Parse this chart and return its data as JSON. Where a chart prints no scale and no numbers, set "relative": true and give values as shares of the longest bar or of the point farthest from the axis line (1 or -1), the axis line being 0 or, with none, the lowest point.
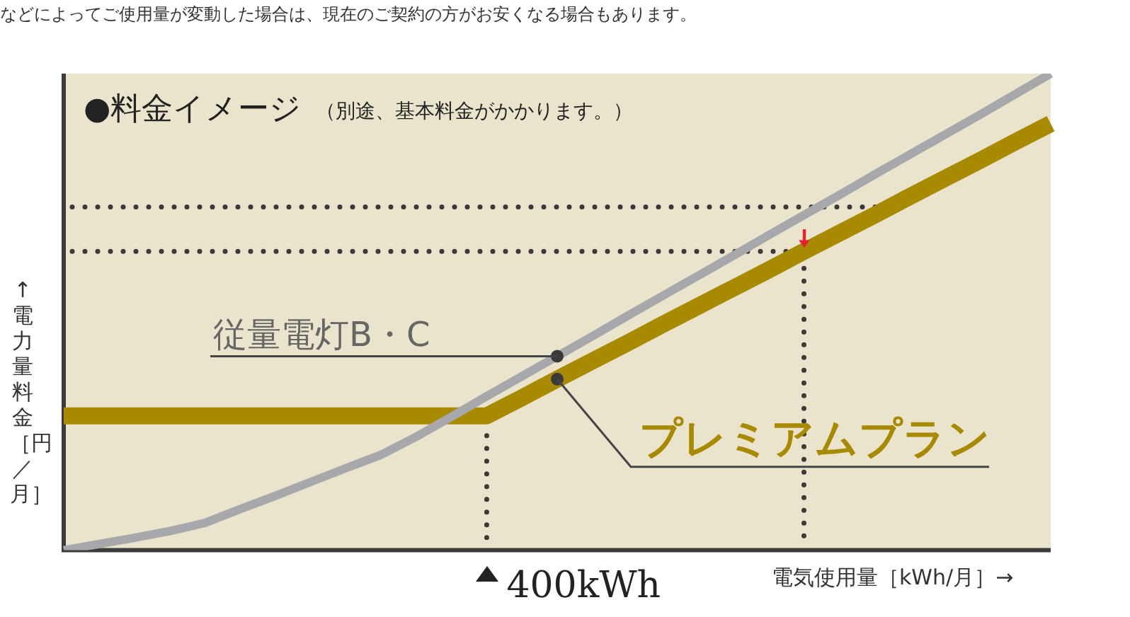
{
  "chart_data": {
    "type": "line",
    "title": "●料金イメージ",
    "subtitle": "（別途、基本料金がかかります。）",
    "xlabel": "電気使用量［kWh/月］→",
    "ylabel": "↑電力量料金［円／月］",
    "annotations": [
      "などによってご使用量が変動した場合は、現在のご契約の方がお安くなる場合もあります。",
      "400kWh"
    ],
    "categories": [
      null,
      null,
      null,
      null,
      null,
      null,
      null,
      null,
      null,
      null,
      null,
      null,
      null,
      null,
      null,
      null,
      null,
      null,
      null,
      null,
      null,
      null,
      null,
      null,
      null,
      null,
      null,
      null,
      null
    ],
    "relative": true,
    "legend": false,
    "grid": false,
    "marker": "none",
    "line_style": "solid",
    "series": [
      {
        "name": "従量電灯B・C",
        "color": "#a7a8ab",
        "values": [
          0,
          0.013,
          0.026,
          0.04,
          0.057,
          0.086,
          0.114,
          0.143,
          0.172,
          0.2,
          0.238,
          0.28,
          0.323,
          0.365,
          0.407,
          0.449,
          0.492,
          0.534,
          0.576,
          0.618,
          0.661,
          0.703,
          0.745,
          0.788,
          0.83,
          0.872,
          0.914,
          0.957,
          1
        ]
      },
      {
        "name": "プレミアムプラン",
        "color": "#a88a00",
        "values": [
          0.282,
          0.282,
          0.282,
          0.282,
          0.282,
          0.282,
          0.282,
          0.282,
          0.282,
          0.282,
          0.282,
          0.282,
          0.282,
          0.32,
          0.359,
          0.397,
          0.435,
          0.474,
          0.512,
          0.55,
          0.588,
          0.627,
          0.665,
          0.703,
          0.742,
          0.78,
          0.818,
          0.857,
          0.895
        ]
      }
    ],
    "ref_lines": [
      {
        "axis": "y",
        "value": 0.627
      },
      {
        "axis": "y",
        "value": 0.72
      }
    ]
  }
}
